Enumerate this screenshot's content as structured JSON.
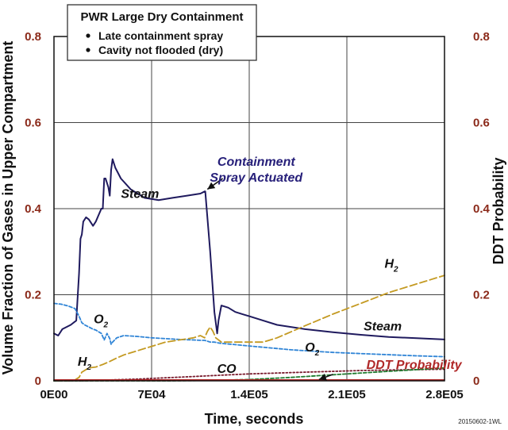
{
  "chart_data": {
    "type": "line",
    "xlabel": "Time, seconds",
    "ylabel": "Volume Fraction of Gases in Upper Compartment",
    "y2label": "DDT Probability",
    "xlim": [
      0,
      280000
    ],
    "ylim": [
      0,
      0.8
    ],
    "y2lim": [
      0,
      0.8
    ],
    "grid": true,
    "x_ticks": [
      {
        "value": 0,
        "label": "0E00"
      },
      {
        "value": 70000,
        "label": "7E04"
      },
      {
        "value": 140000,
        "label": "1.4E05"
      },
      {
        "value": 210000,
        "label": "2.1E05"
      },
      {
        "value": 280000,
        "label": "2.8E05"
      }
    ],
    "y_ticks": [
      {
        "value": 0,
        "label": "0"
      },
      {
        "value": 0.2,
        "label": "0.2"
      },
      {
        "value": 0.4,
        "label": "0.4"
      },
      {
        "value": 0.6,
        "label": "0.6"
      },
      {
        "value": 0.8,
        "label": "0.8"
      }
    ],
    "legend": {
      "title": "PWR Large Dry Containment",
      "items": [
        "Late containment spray",
        "Cavity not flooded (dry)"
      ],
      "placement": "top-left"
    },
    "series": [
      {
        "name": "Steam",
        "color": "#1f1a5e",
        "style": "solid",
        "x": [
          0,
          3000,
          6000,
          12000,
          16000,
          18000,
          19000,
          20000,
          21000,
          23000,
          25000,
          28000,
          30000,
          32000,
          34000,
          35000,
          36000,
          37000,
          39000,
          40000,
          41000,
          42000,
          44000,
          48000,
          55000,
          65000,
          75000,
          85000,
          95000,
          105000,
          108000,
          108500,
          112000,
          115000,
          117000,
          118000,
          120000,
          125000,
          130000,
          135000,
          140000,
          145000,
          150000,
          160000,
          180000,
          200000,
          220000,
          240000,
          260000,
          280000
        ],
        "y": [
          0.11,
          0.105,
          0.12,
          0.13,
          0.14,
          0.25,
          0.33,
          0.34,
          0.37,
          0.38,
          0.375,
          0.36,
          0.37,
          0.385,
          0.4,
          0.4,
          0.47,
          0.47,
          0.45,
          0.43,
          0.49,
          0.515,
          0.495,
          0.47,
          0.445,
          0.425,
          0.42,
          0.425,
          0.43,
          0.435,
          0.44,
          0.44,
          0.3,
          0.16,
          0.11,
          0.14,
          0.175,
          0.17,
          0.16,
          0.155,
          0.15,
          0.145,
          0.14,
          0.13,
          0.12,
          0.113,
          0.107,
          0.102,
          0.099,
          0.096
        ]
      },
      {
        "name": "O2",
        "color": "#2f84d6",
        "style": "dash-short",
        "x": [
          0,
          5000,
          10000,
          15000,
          18000,
          20000,
          22000,
          25000,
          28000,
          30000,
          32000,
          34000,
          36000,
          38000,
          40000,
          41000,
          42000,
          45000,
          50000,
          60000,
          70000,
          80000,
          90000,
          100000,
          105000,
          108000,
          112000,
          115000,
          118000,
          120000,
          130000,
          140000,
          150000,
          170000,
          200000,
          230000,
          260000,
          280000
        ],
        "y": [
          0.18,
          0.178,
          0.174,
          0.168,
          0.15,
          0.135,
          0.13,
          0.125,
          0.12,
          0.118,
          0.114,
          0.11,
          0.095,
          0.11,
          0.098,
          0.085,
          0.09,
          0.1,
          0.105,
          0.103,
          0.1,
          0.098,
          0.096,
          0.095,
          0.094,
          0.094,
          0.09,
          0.09,
          0.088,
          0.087,
          0.084,
          0.081,
          0.078,
          0.072,
          0.066,
          0.062,
          0.058,
          0.056
        ]
      },
      {
        "name": "H2",
        "color": "#c49a22",
        "style": "dash-long",
        "x": [
          0,
          10000,
          15000,
          18000,
          20000,
          25000,
          30000,
          35000,
          40000,
          45000,
          50000,
          60000,
          70000,
          80000,
          90000,
          100000,
          105000,
          108000,
          110000,
          112000,
          114000,
          116000,
          120000,
          130000,
          140000,
          150000,
          160000,
          180000,
          200000,
          220000,
          240000,
          260000,
          280000
        ],
        "y": [
          0,
          0,
          0.002,
          0.008,
          0.02,
          0.03,
          0.032,
          0.038,
          0.045,
          0.053,
          0.06,
          0.07,
          0.08,
          0.09,
          0.095,
          0.1,
          0.105,
          0.1,
          0.115,
          0.125,
          0.115,
          0.1,
          0.09,
          0.09,
          0.09,
          0.09,
          0.1,
          0.128,
          0.155,
          0.18,
          0.205,
          0.225,
          0.245
        ]
      },
      {
        "name": "CO",
        "color": "#7a1c2e",
        "style": "dot",
        "x": [
          0,
          20000,
          40000,
          60000,
          80000,
          100000,
          120000,
          140000,
          160000,
          180000,
          200000,
          220000,
          240000,
          260000,
          280000
        ],
        "y": [
          0,
          0,
          0.002,
          0.004,
          0.007,
          0.01,
          0.013,
          0.016,
          0.018,
          0.02,
          0.022,
          0.024,
          0.025,
          0.026,
          0.027
        ]
      },
      {
        "name": "DDT Probability",
        "color": "#1f7a2e",
        "style": "dash-short",
        "x": [
          0,
          80000,
          110000,
          140000,
          170000,
          200000,
          230000,
          260000,
          280000
        ],
        "y": [
          0,
          0,
          0.001,
          0.003,
          0.008,
          0.014,
          0.02,
          0.026,
          0.03
        ]
      },
      {
        "name": "",
        "color": "#b02828",
        "style": "solid",
        "x": [
          0,
          280000
        ],
        "y": [
          0.002,
          0.002
        ]
      }
    ],
    "annotations": [
      {
        "key": "steam-upper",
        "text": "Steam",
        "color": "#111111",
        "x": 48000,
        "y": 0.425
      },
      {
        "key": "spray",
        "lines": [
          "Containment",
          "Spray Actuated"
        ],
        "color": "#27207a",
        "x": 145000,
        "y": 0.5
      },
      {
        "key": "steam-lower",
        "text": "Steam",
        "color": "#111111",
        "x": 222000,
        "y": 0.117
      },
      {
        "key": "o2-upper",
        "text": "O",
        "sub": "2",
        "color": "#111111",
        "x": 28500,
        "y": 0.134
      },
      {
        "key": "o2-lower",
        "text": "O",
        "sub": "2",
        "color": "#111111",
        "x": 180000,
        "y": 0.068
      },
      {
        "key": "h2-upper",
        "text": "H",
        "sub": "2",
        "color": "#111111",
        "x": 237000,
        "y": 0.263
      },
      {
        "key": "h2-lower",
        "text": "H",
        "sub": "2",
        "color": "#111111",
        "x": 17000,
        "y": 0.035
      },
      {
        "key": "co",
        "text": "CO",
        "color": "#111111",
        "x": 117000,
        "y": 0.018
      },
      {
        "key": "ddt",
        "text": "DDT Probability",
        "color": "#b02828",
        "x": 224000,
        "y": 0.028
      }
    ]
  },
  "figure_id": "20150602-1WL"
}
